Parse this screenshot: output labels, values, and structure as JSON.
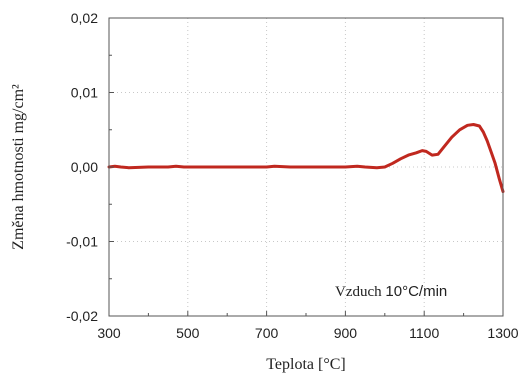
{
  "chart_data": {
    "type": "line",
    "xlabel": "Teplota [°C]",
    "ylabel": "Změna hmotnosti mg/cm²",
    "xlim": [
      300,
      1300
    ],
    "ylim": [
      -0.02,
      0.02
    ],
    "x_ticks": [
      300,
      500,
      700,
      900,
      1100,
      1300
    ],
    "x_tick_labels": [
      "300",
      "500",
      "700",
      "900",
      "1100",
      "1300"
    ],
    "y_ticks": [
      0.02,
      0.01,
      0.0,
      -0.01,
      -0.02
    ],
    "y_tick_labels": [
      "0,02",
      "0,01",
      "0,00",
      "-0,01",
      "-0,02"
    ],
    "grid": true,
    "annotation": {
      "prefix": "Vzduch ",
      "suffix": "10°C/min"
    },
    "series": [
      {
        "color": "#c0281f",
        "x": [
          300,
          315,
          330,
          350,
          400,
          450,
          470,
          490,
          550,
          650,
          700,
          720,
          760,
          800,
          900,
          930,
          950,
          980,
          1000,
          1020,
          1040,
          1060,
          1080,
          1095,
          1105,
          1120,
          1135,
          1150,
          1170,
          1190,
          1210,
          1225,
          1240,
          1250,
          1260,
          1270,
          1280,
          1290,
          1300
        ],
        "y": [
          0.0,
          0.0001,
          0.0,
          -0.0001,
          0.0,
          0.0,
          0.0001,
          0.0,
          0.0,
          0.0,
          0.0,
          0.0001,
          0.0,
          0.0,
          0.0,
          0.0001,
          0.0,
          -0.0001,
          0.0,
          0.0005,
          0.0011,
          0.0016,
          0.0019,
          0.0022,
          0.0021,
          0.0016,
          0.0017,
          0.0027,
          0.004,
          0.005,
          0.0056,
          0.0057,
          0.0055,
          0.0047,
          0.0035,
          0.002,
          0.0005,
          -0.0015,
          -0.0033
        ]
      }
    ]
  }
}
